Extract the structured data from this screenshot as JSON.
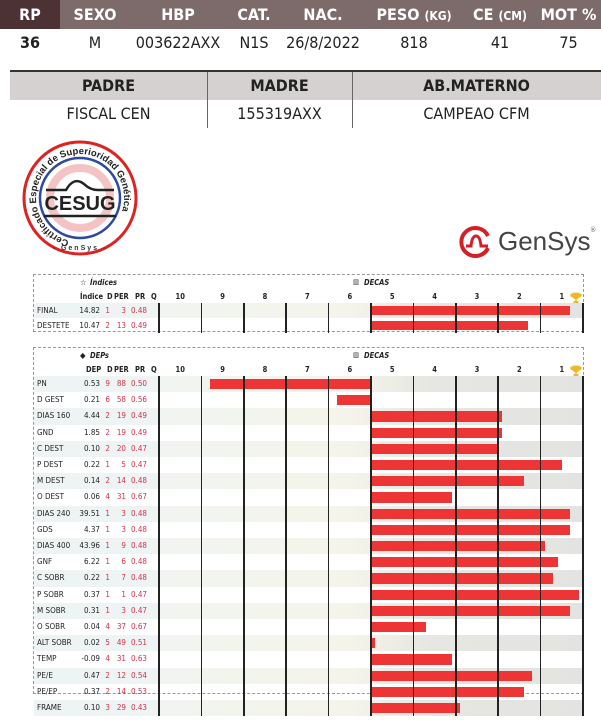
{
  "animal": {
    "headers": {
      "rp": "RP",
      "sexo": "SEXO",
      "hbp": "HBP",
      "cat": "CAT.",
      "nac": "NAC.",
      "peso": "PESO",
      "peso_unit": "(KG)",
      "ce": "CE",
      "ce_unit": "(CM)",
      "mot": "MOT %"
    },
    "values": {
      "rp": "36",
      "sexo": "M",
      "hbp": "003622AXX",
      "cat": "N1S",
      "nac": "26/8/2022",
      "peso": "818",
      "ce": "41",
      "mot": "75"
    }
  },
  "parents": {
    "headers": {
      "padre": "PADRE",
      "madre": "MADRE",
      "ab_materno": "AB.MATERNO"
    },
    "values": {
      "padre": "FISCAL CEN",
      "madre": "155319AXX",
      "ab_materno": "CAMPEAO CFM"
    }
  },
  "logos": {
    "cesug": "CESUG",
    "cesug_ring": "Certificado Especial de Superioridad Genética",
    "cesug_bottom": "- GenSys -",
    "gensys": "GenSys",
    "gensys_mark": "®"
  },
  "colors": {
    "bar": "#ee3535",
    "header_dark": "#4c3234",
    "header": "#7d6b6b",
    "value_red": "#d0314a",
    "trophy": "#f2b824"
  },
  "decas_columns": [
    "10",
    "9",
    "8",
    "7",
    "6",
    "5",
    "4",
    "3",
    "2",
    "1"
  ],
  "indices": {
    "title": "Índices",
    "title_icon": "star-icon",
    "decas_title": "DECAS",
    "decas_icon": "bar-chart-icon",
    "columns": [
      "Índice",
      "D",
      "PER",
      "PR",
      "Q"
    ],
    "rows": [
      {
        "name": "FINAL",
        "value": "14.82",
        "d": "1",
        "per": "3",
        "pr": "0.48"
      },
      {
        "name": "DESTETE",
        "value": "10.47",
        "d": "2",
        "per": "13",
        "pr": "0.49"
      }
    ]
  },
  "deps": {
    "title": "DEPs",
    "title_icon": "tags-icon",
    "decas_title": "DECAS",
    "decas_icon": "bar-chart-icon",
    "columns": [
      "DEP",
      "D",
      "PER",
      "PR",
      "Q"
    ],
    "rows": [
      {
        "name": "PN",
        "value": "0.53",
        "d": "9",
        "per": "88",
        "pr": "0.50"
      },
      {
        "name": "D GEST",
        "value": "0.21",
        "d": "6",
        "per": "58",
        "pr": "0.56"
      },
      {
        "name": "DIAS 160",
        "value": "4.44",
        "d": "2",
        "per": "19",
        "pr": "0.49"
      },
      {
        "name": "GND",
        "value": "1.85",
        "d": "2",
        "per": "19",
        "pr": "0.49"
      },
      {
        "name": "C DEST",
        "value": "0.10",
        "d": "2",
        "per": "20",
        "pr": "0.47"
      },
      {
        "name": "P DEST",
        "value": "0.22",
        "d": "1",
        "per": "5",
        "pr": "0.47"
      },
      {
        "name": "M DEST",
        "value": "0.14",
        "d": "2",
        "per": "14",
        "pr": "0.48"
      },
      {
        "name": "O DEST",
        "value": "0.06",
        "d": "4",
        "per": "31",
        "pr": "0.67"
      },
      {
        "name": "DIAS 240",
        "value": "39.51",
        "d": "1",
        "per": "3",
        "pr": "0.48"
      },
      {
        "name": "GDS",
        "value": "4.37",
        "d": "1",
        "per": "3",
        "pr": "0.48"
      },
      {
        "name": "DIAS 400",
        "value": "43.96",
        "d": "1",
        "per": "9",
        "pr": "0.48"
      },
      {
        "name": "GNF",
        "value": "6.22",
        "d": "1",
        "per": "6",
        "pr": "0.48"
      },
      {
        "name": "C SOBR",
        "value": "0.22",
        "d": "1",
        "per": "7",
        "pr": "0.48"
      },
      {
        "name": "P SOBR",
        "value": "0.37",
        "d": "1",
        "per": "1",
        "pr": "0.47"
      },
      {
        "name": "M SOBR",
        "value": "0.31",
        "d": "1",
        "per": "3",
        "pr": "0.47"
      },
      {
        "name": "O SOBR",
        "value": "0.04",
        "d": "4",
        "per": "37",
        "pr": "0.67"
      },
      {
        "name": "ALT SOBR",
        "value": "0.02",
        "d": "5",
        "per": "49",
        "pr": "0.51"
      },
      {
        "name": "TEMP",
        "value": "-0.09",
        "d": "4",
        "per": "31",
        "pr": "0.63"
      },
      {
        "name": "PE/E",
        "value": "0.47",
        "d": "2",
        "per": "12",
        "pr": "0.54"
      },
      {
        "name": "PE/EP",
        "value": "0.37",
        "d": "2",
        "per": "14",
        "pr": "0.53"
      },
      {
        "name": "FRAME",
        "value": "0.10",
        "d": "3",
        "per": "29",
        "pr": "0.43"
      }
    ]
  }
}
